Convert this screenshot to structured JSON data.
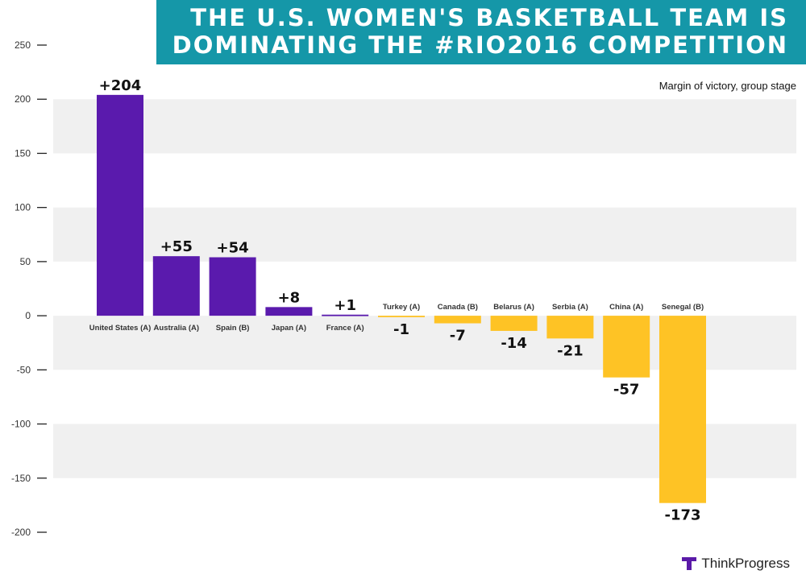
{
  "title": {
    "line1": "THE U.S. WOMEN'S BASKETBALL TEAM IS",
    "line2": "DOMINATING THE #RIO2016 COMPETITION"
  },
  "subtitle": "Margin of victory, group stage",
  "brand": "ThinkProgress",
  "colors": {
    "positive": "#5a1aad",
    "negative": "#fec325",
    "title_bg": "#1597a8",
    "band": "#f0f0f0"
  },
  "chart_data": {
    "type": "bar",
    "title": "THE U.S. WOMEN'S BASKETBALL TEAM IS DOMINATING THE #RIO2016 COMPETITION",
    "subtitle": "Margin of victory, group stage",
    "categories": [
      "United States (A)",
      "Australia (A)",
      "Spain (B)",
      "Japan (A)",
      "France (A)",
      "Turkey (A)",
      "Canada (B)",
      "Belarus (A)",
      "Serbia (A)",
      "China (A)",
      "Senegal (B)"
    ],
    "values": [
      204,
      55,
      54,
      8,
      1,
      -1,
      -7,
      -14,
      -21,
      -57,
      -173
    ],
    "data_labels": [
      "+204",
      "+55",
      "+54",
      "+8",
      "+1",
      "-1",
      "-7",
      "-14",
      "-21",
      "-57",
      "-173"
    ],
    "yticks": [
      "250",
      "200",
      "150",
      "100",
      "50",
      "0",
      "-50",
      "-100",
      "-150",
      "-200"
    ],
    "ylim": [
      -200,
      250
    ],
    "xlabel": "",
    "ylabel": "",
    "grid": "alternating bands"
  }
}
